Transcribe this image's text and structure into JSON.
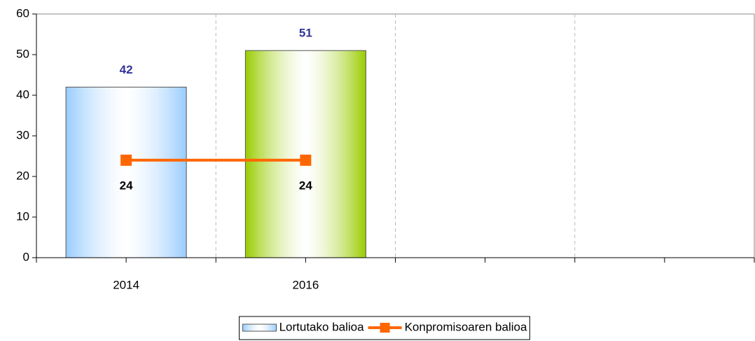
{
  "chart_data": {
    "type": "bar",
    "categories": [
      "2014",
      "2016",
      null,
      null
    ],
    "series": [
      {
        "name": "Lortutako balioa",
        "type": "bar",
        "colors": [
          "#99ccff",
          "#99cc00"
        ],
        "label_color": "#333399",
        "values": [
          42,
          51,
          null,
          null
        ]
      },
      {
        "name": "Konpromisoaren balioa",
        "type": "line",
        "color": "#ff6600",
        "label_color": "#000000",
        "values": [
          24,
          24,
          null,
          null
        ]
      }
    ],
    "ylim": [
      0,
      60
    ],
    "yticks": [
      0,
      10,
      20,
      30,
      40,
      50,
      60
    ],
    "grid": "x",
    "legend": "bottom"
  }
}
